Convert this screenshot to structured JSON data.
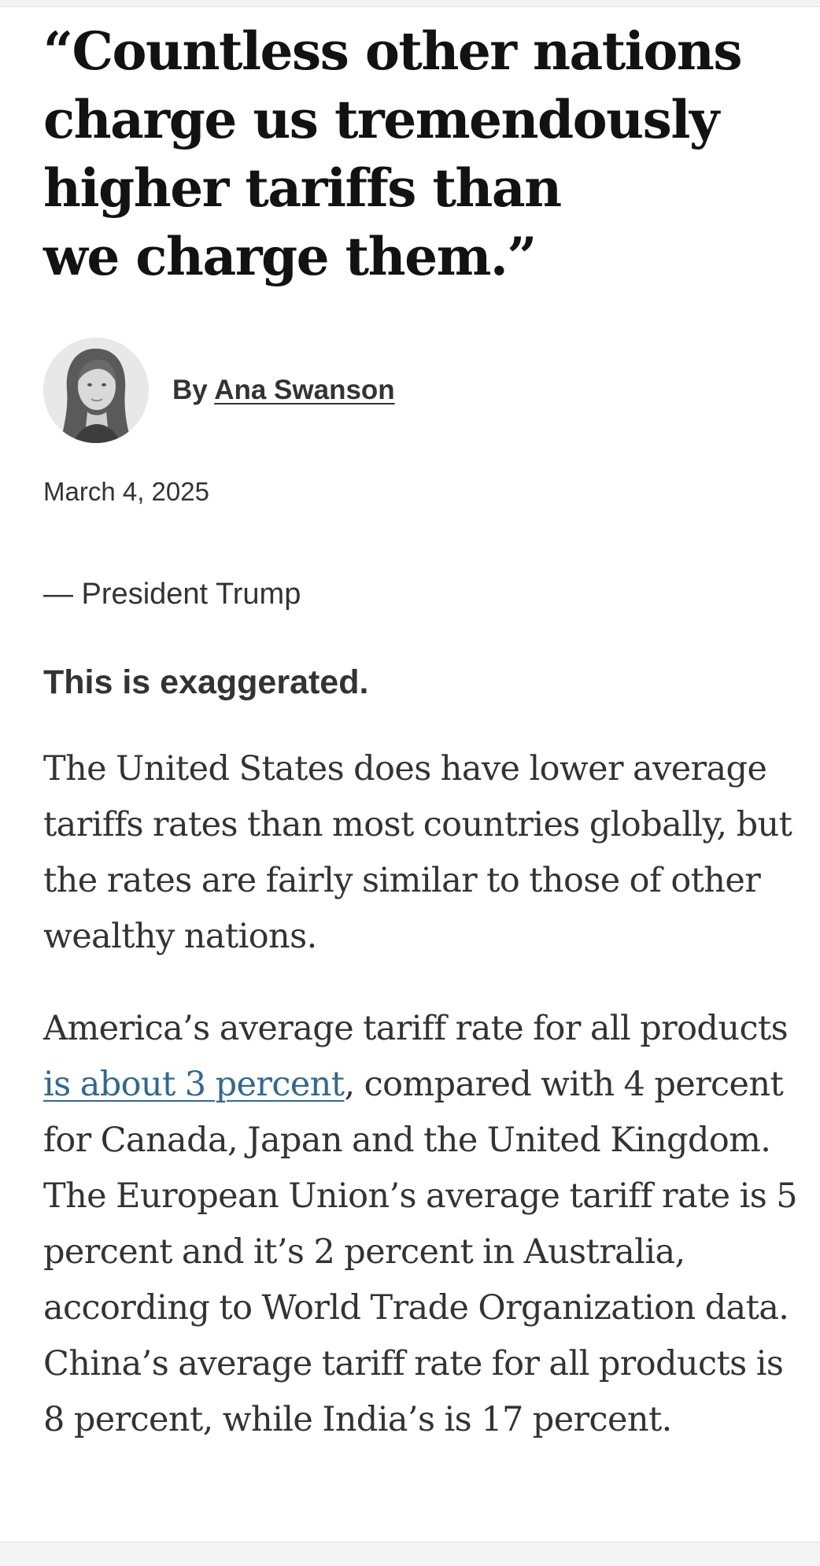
{
  "article": {
    "headline_lines": [
      "“Countless other nations",
      "charge us tremendously",
      "higher tariffs than",
      "we charge them.”"
    ],
    "byline_prefix": "By",
    "author_name": "Ana Swanson",
    "date": "March 4, 2025",
    "attribution": "— President Trump",
    "verdict": "This is exaggerated.",
    "paragraph1": "The United States does have lower average tariffs rates than most countries globally, but the rates are fairly similar to those of other wealthy nations.",
    "paragraph2_start": "America’s average tariff rate for all products ",
    "paragraph2_link": "is about 3 percent",
    "paragraph2_end": ", compared with 4 percent for Canada, Japan and the United Kingdom. The European Union’s average tariff rate is 5 percent and it’s 2 percent in Australia, according to World Trade Organization data. China’s average tariff rate for all products is 8 percent, while India’s is 17 percent."
  },
  "colors": {
    "text": "#121212",
    "body_text": "#333333",
    "link": "#326891"
  },
  "icons": {
    "avatar": "author-photo"
  }
}
